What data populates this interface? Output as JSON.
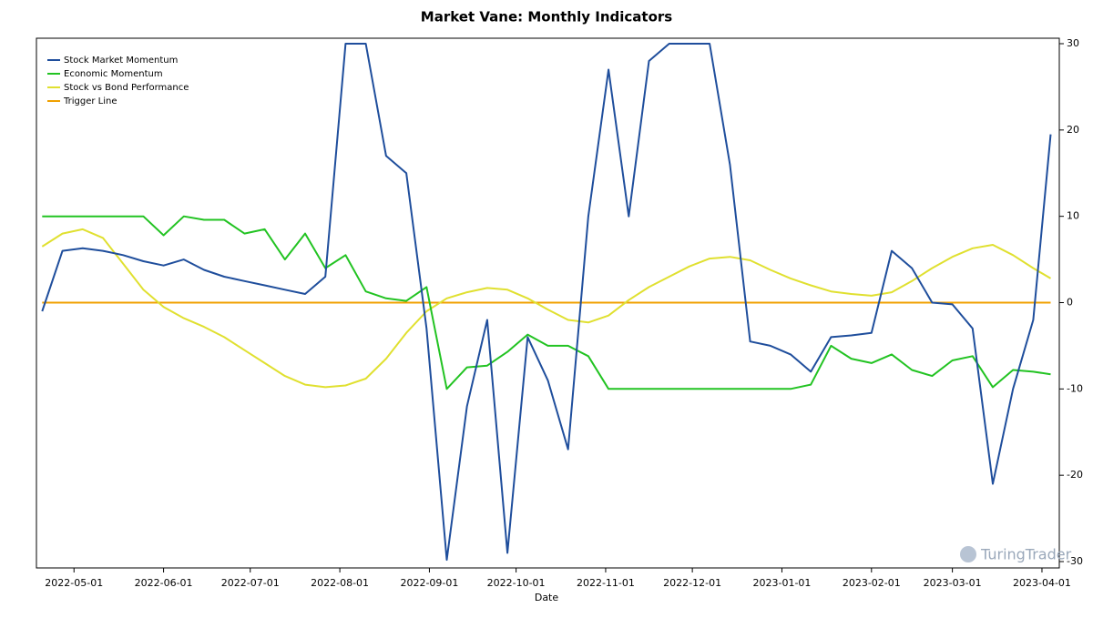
{
  "chart_data": {
    "type": "line",
    "title": "Market Vane: Monthly Indicators",
    "xlabel": "Date",
    "watermark": "TuringTrader",
    "x": [
      "2022-04-20",
      "2022-04-27",
      "2022-05-04",
      "2022-05-11",
      "2022-05-18",
      "2022-05-25",
      "2022-06-01",
      "2022-06-08",
      "2022-06-15",
      "2022-06-22",
      "2022-06-29",
      "2022-07-06",
      "2022-07-13",
      "2022-07-20",
      "2022-07-27",
      "2022-08-03",
      "2022-08-10",
      "2022-08-17",
      "2022-08-24",
      "2022-08-31",
      "2022-09-07",
      "2022-09-14",
      "2022-09-21",
      "2022-09-28",
      "2022-10-05",
      "2022-10-12",
      "2022-10-19",
      "2022-10-26",
      "2022-11-02",
      "2022-11-09",
      "2022-11-16",
      "2022-11-23",
      "2022-11-30",
      "2022-12-07",
      "2022-12-14",
      "2022-12-21",
      "2022-12-28",
      "2023-01-04",
      "2023-01-11",
      "2023-01-18",
      "2023-01-25",
      "2023-02-01",
      "2023-02-08",
      "2023-02-15",
      "2023-02-22",
      "2023-03-01",
      "2023-03-08",
      "2023-03-15",
      "2023-03-22",
      "2023-03-29",
      "2023-04-04"
    ],
    "series": [
      {
        "name": "Stock Market Momentum",
        "color": "#1f4e9c",
        "values": [
          -1,
          6,
          6.3,
          6,
          5.5,
          4.8,
          4.3,
          5,
          3.8,
          3,
          2.5,
          2,
          1.5,
          1,
          3,
          30,
          30,
          17,
          15,
          -3,
          -29.8,
          -12,
          -2,
          -29,
          -4,
          -9,
          -17,
          10,
          27,
          10,
          28,
          30,
          30,
          30,
          16,
          -4.5,
          -5,
          -6,
          -8,
          -4,
          -3.8,
          -3.5,
          6,
          4,
          0,
          -0.2,
          -3,
          -21,
          -10,
          -2,
          19.5
        ]
      },
      {
        "name": "Economic Momentum",
        "color": "#22c322",
        "values": [
          10,
          10,
          10,
          10,
          10,
          10,
          7.8,
          10,
          9.6,
          9.6,
          8,
          8.5,
          5,
          8,
          4,
          5.5,
          1.3,
          0.5,
          0.2,
          1.8,
          -10,
          -7.5,
          -7.3,
          -5.7,
          -3.7,
          -5,
          -5,
          -6.2,
          -10,
          -10,
          -10,
          -10,
          -10,
          -10,
          -10,
          -10,
          -10,
          -10,
          -9.5,
          -5,
          -6.5,
          -7,
          -6,
          -7.8,
          -8.5,
          -6.7,
          -6.2,
          -9.8,
          -7.8,
          -8,
          -8.3
        ]
      },
      {
        "name": "Stock vs Bond Performance",
        "color": "#e0e030",
        "values": [
          6.5,
          8,
          8.5,
          7.5,
          4.5,
          1.5,
          -0.5,
          -1.8,
          -2.8,
          -4,
          -5.5,
          -7,
          -8.5,
          -9.5,
          -9.8,
          -9.6,
          -8.8,
          -6.5,
          -3.5,
          -1,
          0.5,
          1.2,
          1.7,
          1.5,
          0.5,
          -0.8,
          -2,
          -2.3,
          -1.5,
          0.3,
          1.8,
          3,
          4.2,
          5.1,
          5.3,
          4.9,
          3.8,
          2.8,
          2,
          1.3,
          1,
          0.8,
          1.2,
          2.5,
          4,
          5.3,
          6.3,
          6.7,
          5.5,
          4,
          2.8
        ]
      },
      {
        "name": "Trigger Line",
        "color": "#f0a000",
        "values": [
          0,
          0,
          0,
          0,
          0,
          0,
          0,
          0,
          0,
          0,
          0,
          0,
          0,
          0,
          0,
          0,
          0,
          0,
          0,
          0,
          0,
          0,
          0,
          0,
          0,
          0,
          0,
          0,
          0,
          0,
          0,
          0,
          0,
          0,
          0,
          0,
          0,
          0,
          0,
          0,
          0,
          0,
          0,
          0,
          0,
          0,
          0,
          0,
          0,
          0,
          0
        ]
      }
    ],
    "xlim": [
      "2022-04-18",
      "2023-04-07"
    ],
    "xticks": [
      "2022-05-01",
      "2022-06-01",
      "2022-07-01",
      "2022-08-01",
      "2022-09-01",
      "2022-10-01",
      "2022-11-01",
      "2022-12-01",
      "2023-01-01",
      "2023-02-01",
      "2023-03-01",
      "2023-04-01"
    ],
    "ylim": [
      -30,
      30
    ],
    "yticks": [
      -30,
      -20,
      -10,
      0,
      10,
      20,
      30
    ],
    "legend": "upper left"
  }
}
